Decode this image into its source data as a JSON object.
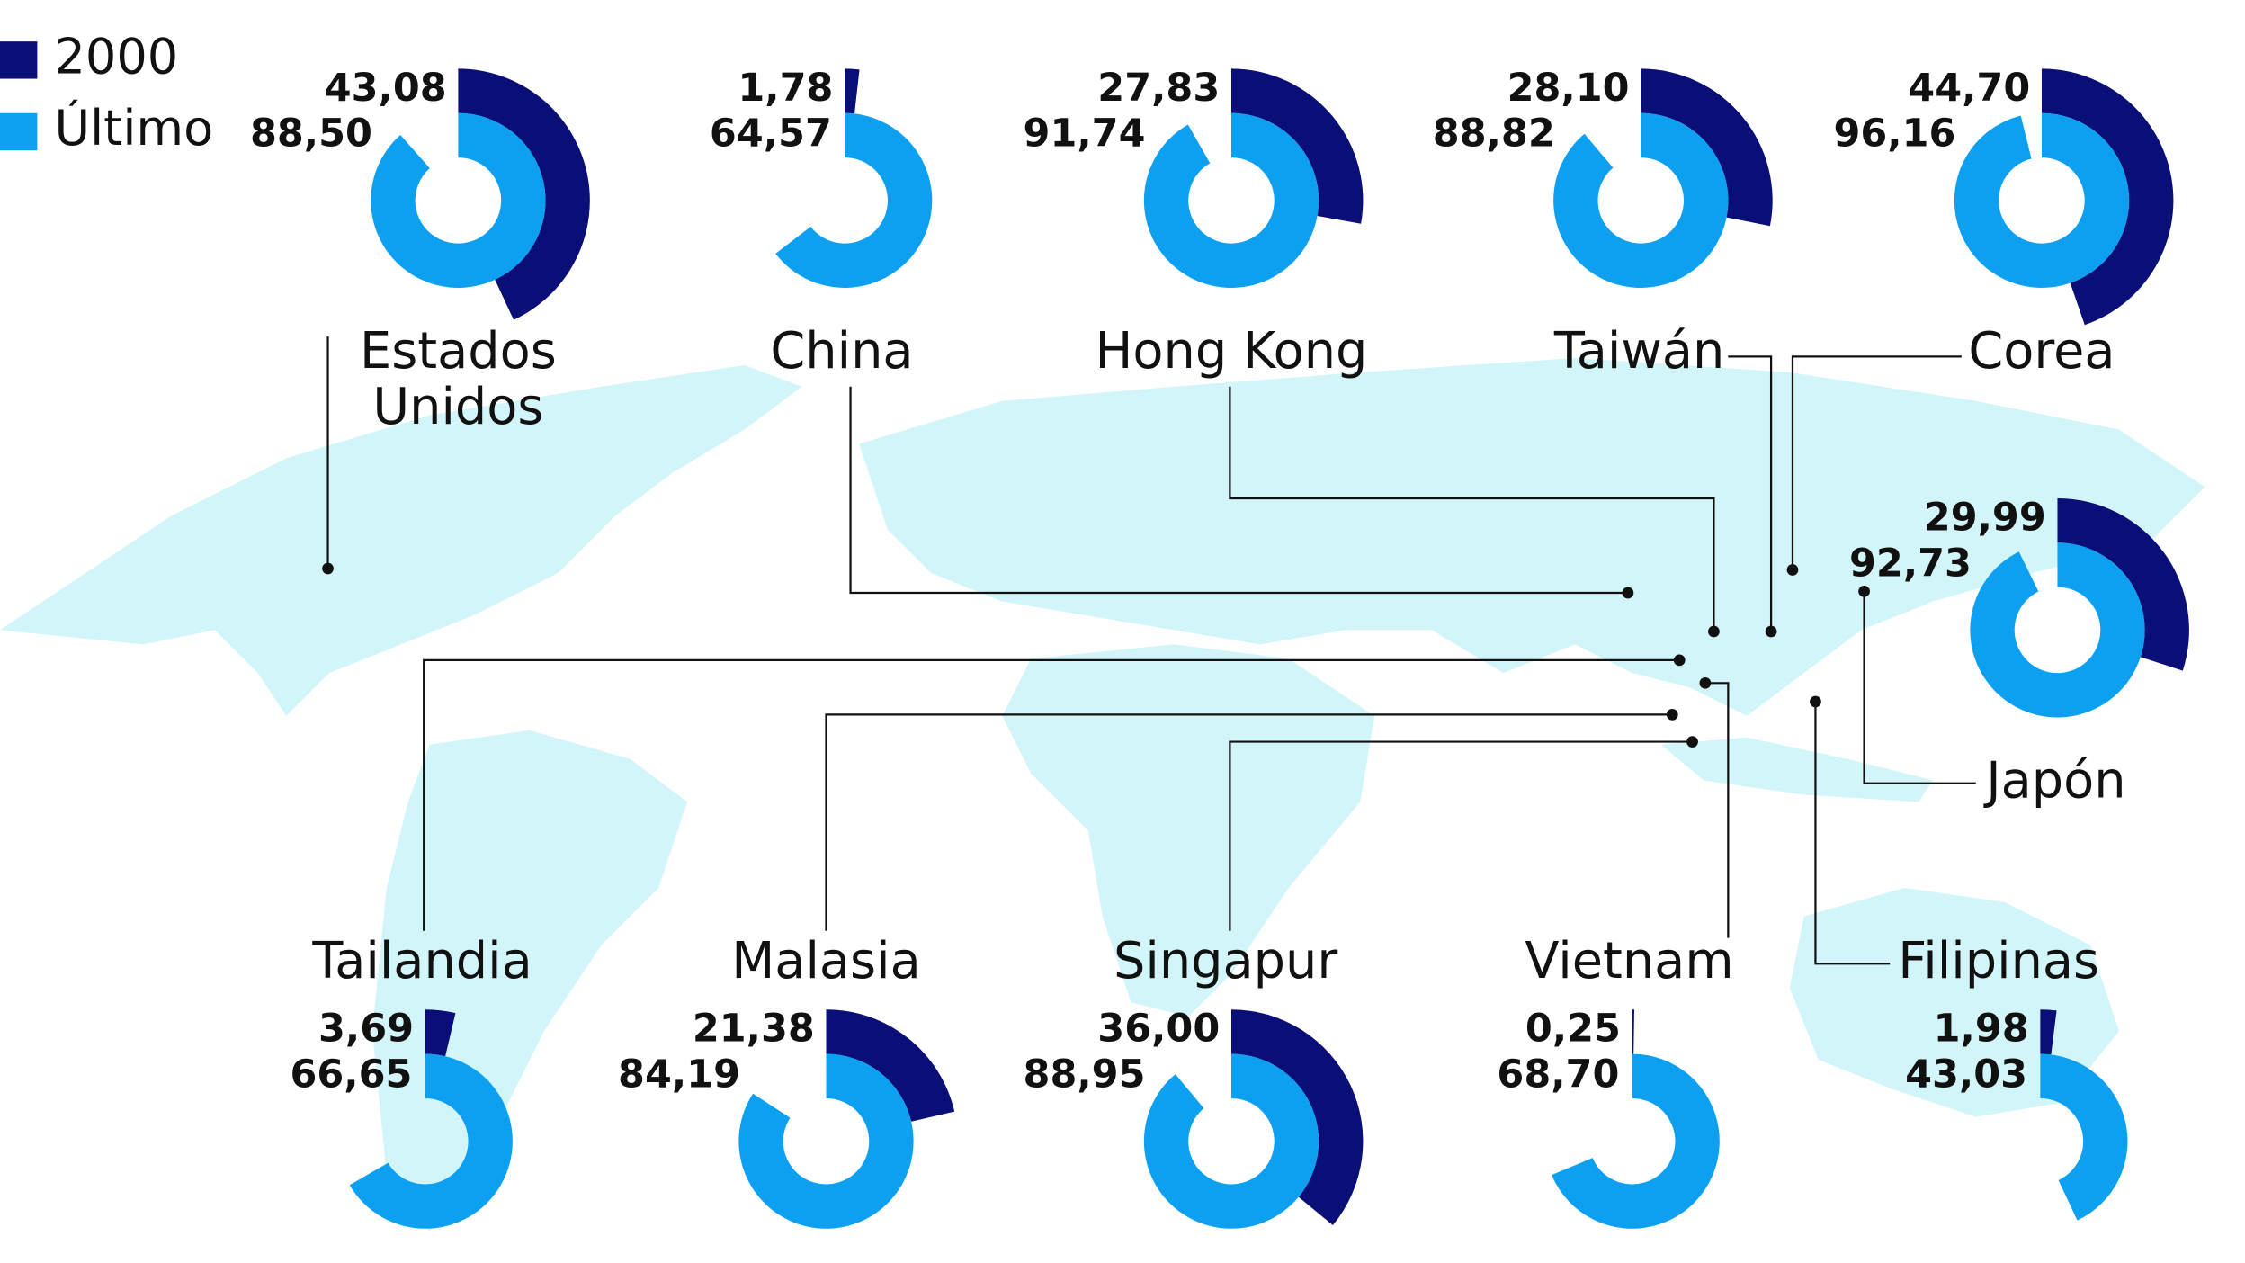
{
  "chart_data": {
    "type": "radial_bar",
    "categories": [
      "Estados Unidos",
      "China",
      "Hong Kong",
      "Taiwán",
      "Corea",
      "Japón",
      "Tailandia",
      "Malasia",
      "Singapur",
      "Vietnam",
      "Filipinas"
    ],
    "ylim": [
      0,
      100
    ],
    "series": [
      {
        "name": "2000",
        "color": "#0a0f78",
        "values": [
          43.08,
          1.78,
          27.83,
          28.1,
          44.7,
          29.99,
          3.69,
          21.38,
          36.0,
          0.25,
          1.98
        ],
        "value_labels": [
          "43,08",
          "1,78",
          "27,83",
          "28,10",
          "44,70",
          "29,99",
          "3,69",
          "21,38",
          "36,00",
          "0,25",
          "1,98"
        ]
      },
      {
        "name": "Último",
        "color": "#0ea0f0",
        "values": [
          88.5,
          64.57,
          91.74,
          88.82,
          96.16,
          92.73,
          66.65,
          84.19,
          88.95,
          68.7,
          43.03
        ],
        "value_labels": [
          "88,50",
          "64,57",
          "91,74",
          "88,82",
          "96,16",
          "92,73",
          "66,65",
          "84,19",
          "88,95",
          "68,70",
          "43,03"
        ]
      }
    ]
  }
}
